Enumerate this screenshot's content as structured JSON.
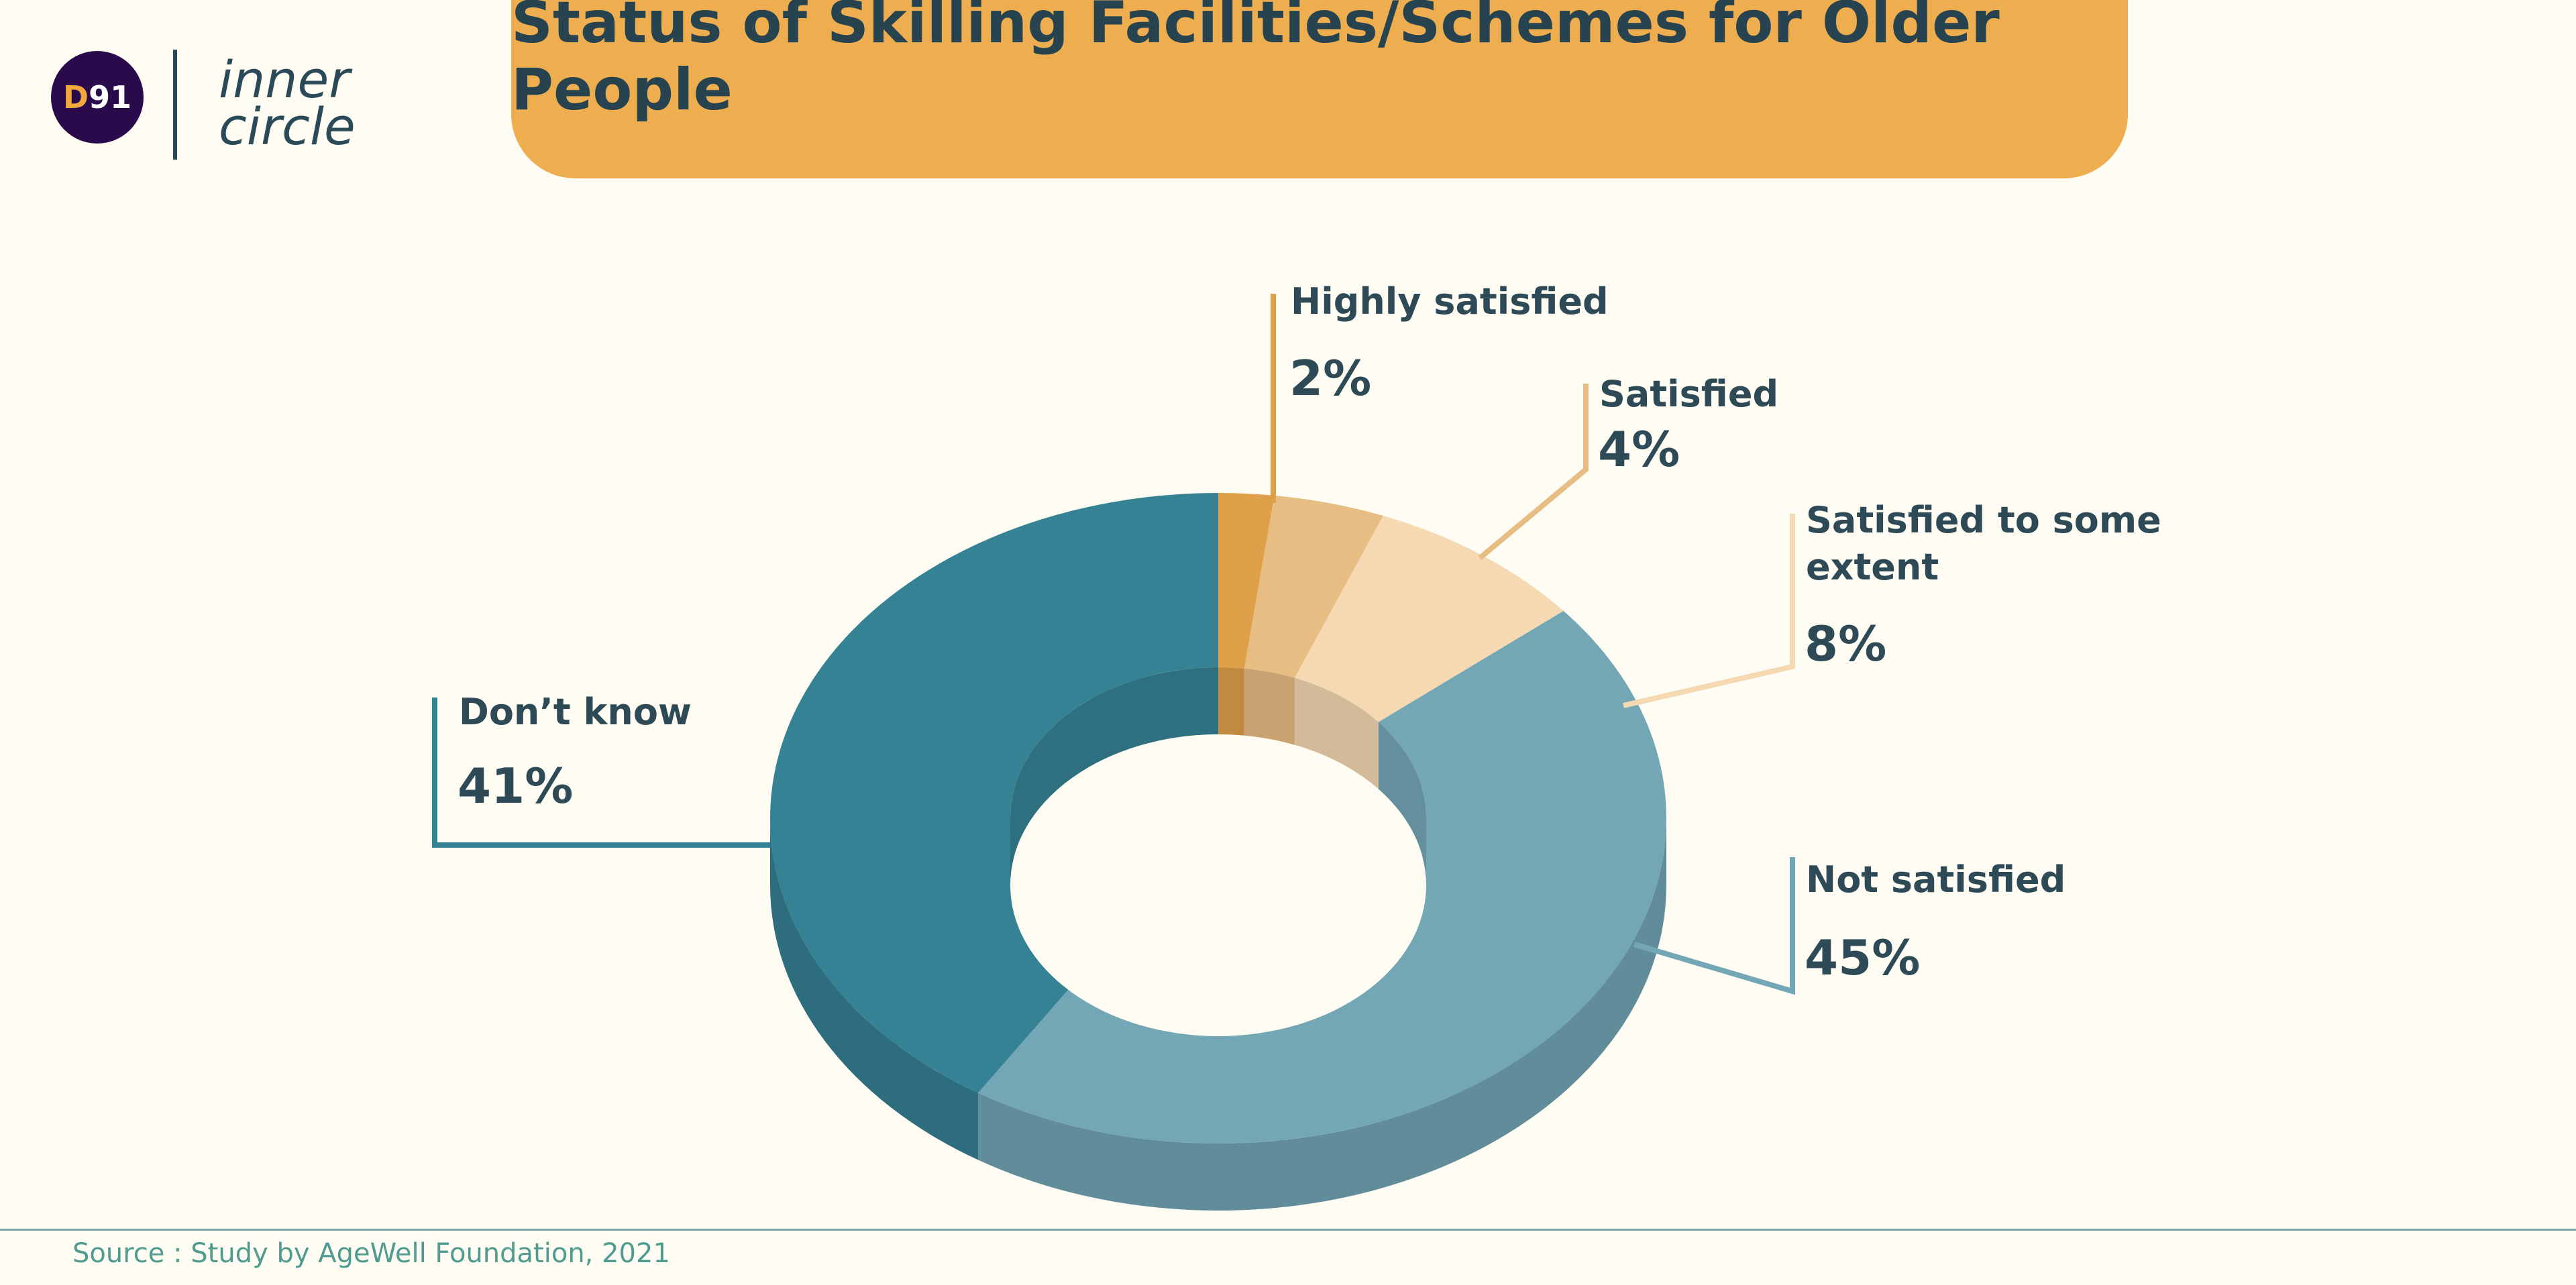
{
  "brand": {
    "logo_mark_letter": "D",
    "logo_mark_number": "91",
    "logo_line1": "inner",
    "logo_line2": "circle"
  },
  "header": {
    "title": "Status of Skilling Facilities/Schemes for Older People"
  },
  "chart_data": {
    "type": "pie",
    "title": "Status of Skilling Facilities/Schemes for Older People",
    "slices": [
      {
        "label": "Highly satisfied",
        "value": 2,
        "display": "2%",
        "color": "#dfa04a"
      },
      {
        "label": "Satisfied",
        "value": 4,
        "display": "4%",
        "color": "#e8bd83"
      },
      {
        "label": "Satisfied to some extent",
        "value": 8,
        "display": "8%",
        "color": "#f5d9b2"
      },
      {
        "label": "Not satisfied",
        "value": 45,
        "display": "45%",
        "color": "#74a7b6"
      },
      {
        "label": "Don’t know",
        "value": 41,
        "display": "41%",
        "color": "#368295"
      }
    ]
  },
  "labels": {
    "highly_satisfied": {
      "name": "Highly satisfied",
      "value": "2%"
    },
    "satisfied": {
      "name": "Satisfied",
      "value": "4%"
    },
    "some_extent": {
      "name_line1": "Satisfied to some",
      "name_line2": "extent",
      "value": "8%"
    },
    "not_satisfied": {
      "name": "Not satisfied",
      "value": "45%"
    },
    "dont_know": {
      "name": "Don’t know",
      "value": "41%"
    }
  },
  "footer": {
    "source": "Source : Study by AgeWell Foundation, 2021"
  }
}
